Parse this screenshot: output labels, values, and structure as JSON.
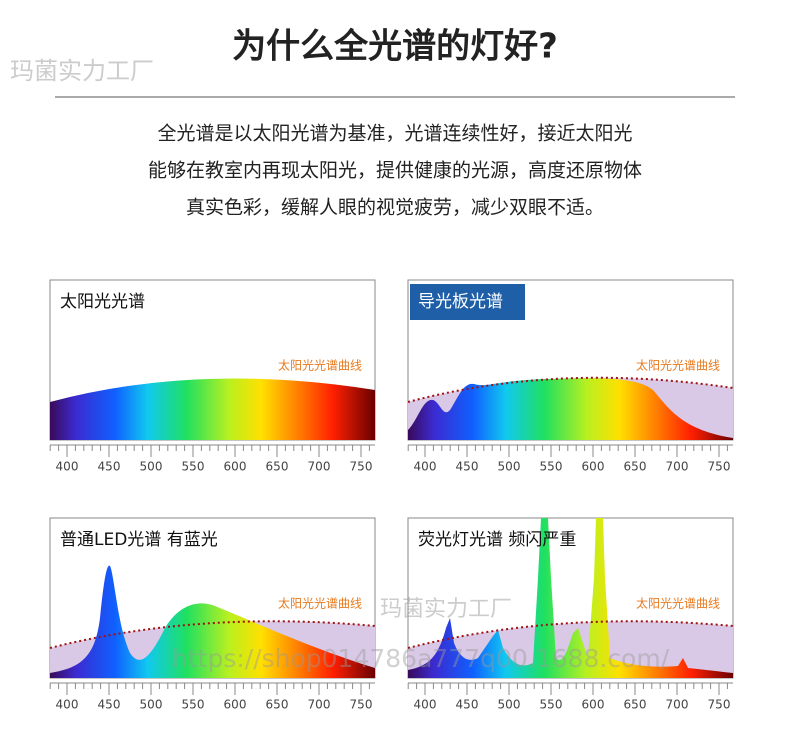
{
  "header": {
    "watermark": "玛菌实力工厂",
    "title": "为什么全光谱的灯好?"
  },
  "intro": [
    "全光谱是以太阳光谱为基准，光谱连续性好，接近太阳光",
    "能够在教室内再现太阳光，提供健康的光源，高度还原物体",
    "真实色彩，缓解人眼的视觉疲劳，减少双眼不适。"
  ],
  "panels": [
    {
      "title": "太阳光光谱",
      "curve_label": "太阳光光谱曲线"
    },
    {
      "title": "导光板光谱",
      "curve_label": "太阳光光谱曲线"
    },
    {
      "title": "普通LED光谱 有蓝光",
      "curve_label": "太阳光光谱曲线"
    },
    {
      "title": "荧光灯光谱 频闪严重",
      "curve_label": "太阳光光谱曲线"
    }
  ],
  "axis_ticks": [
    "400",
    "450",
    "500",
    "550",
    "600",
    "650",
    "700",
    "750"
  ],
  "overlay": {
    "url": "https://shop014786a777q00.1688.com/",
    "watermark": "玛菌实力工厂"
  }
}
